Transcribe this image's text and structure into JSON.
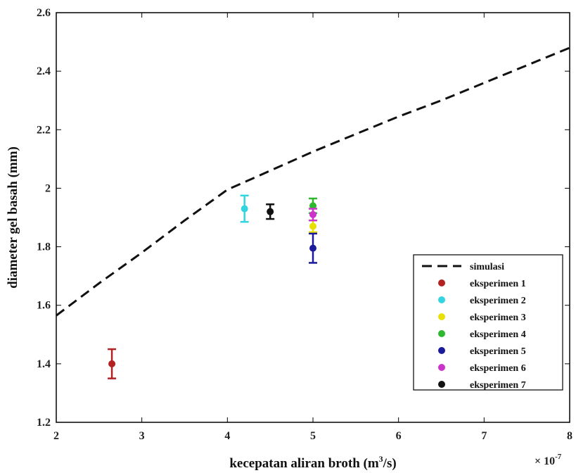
{
  "chart_data": {
    "type": "scatter",
    "xlabel": "kecepatan aliran broth (m³/s)",
    "xlabel_parts": {
      "before": "kecepatan aliran broth (m",
      "sup": "3",
      "after": "/s)"
    },
    "ylabel": "diameter gel basah (mm)",
    "x_multiplier": {
      "base": "× 10",
      "exp": "-7"
    },
    "xlim": [
      2,
      8
    ],
    "ylim": [
      1.2,
      2.6
    ],
    "xticks": [
      2,
      3,
      4,
      5,
      6,
      7,
      8
    ],
    "yticks": [
      1.2,
      1.4,
      1.6,
      1.8,
      2,
      2.2,
      2.4,
      2.6
    ],
    "xtick_labels": [
      "2",
      "3",
      "4",
      "5",
      "6",
      "7",
      "8"
    ],
    "ytick_labels": [
      "1.2",
      "1.4",
      "1.6",
      "1.8",
      "2",
      "2.2",
      "2.4",
      "2.6"
    ],
    "grid": false,
    "legend_position": "bottom-right",
    "line_series": {
      "name": "simulasi",
      "color": "#111111",
      "style": "dashed",
      "x": [
        2.0,
        2.5,
        3.0,
        3.5,
        4.0,
        4.5,
        5.0,
        5.5,
        6.0,
        6.5,
        7.0,
        7.5,
        8.0
      ],
      "y": [
        1.565,
        1.675,
        1.78,
        1.89,
        1.995,
        2.06,
        2.125,
        2.185,
        2.245,
        2.3,
        2.36,
        2.42,
        2.48
      ]
    },
    "series": [
      {
        "name": "eksperimen 1",
        "color": "#b22222",
        "x": 2.65,
        "y": 1.4,
        "err": 0.05
      },
      {
        "name": "eksperimen 2",
        "color": "#33d6e0",
        "x": 4.2,
        "y": 1.93,
        "err": 0.045
      },
      {
        "name": "eksperimen 3",
        "color": "#e8e000",
        "x": 5.0,
        "y": 1.87,
        "err": 0.02
      },
      {
        "name": "eksperimen 4",
        "color": "#2eb82e",
        "x": 5.0,
        "y": 1.94,
        "err": 0.025
      },
      {
        "name": "eksperimen 5",
        "color": "#1a1a9c",
        "x": 5.0,
        "y": 1.795,
        "err": 0.05
      },
      {
        "name": "eksperimen 6",
        "color": "#cc33cc",
        "x": 5.0,
        "y": 1.91,
        "err": 0.02
      },
      {
        "name": "eksperimen 7",
        "color": "#111111",
        "x": 4.5,
        "y": 1.92,
        "err": 0.025
      }
    ]
  }
}
